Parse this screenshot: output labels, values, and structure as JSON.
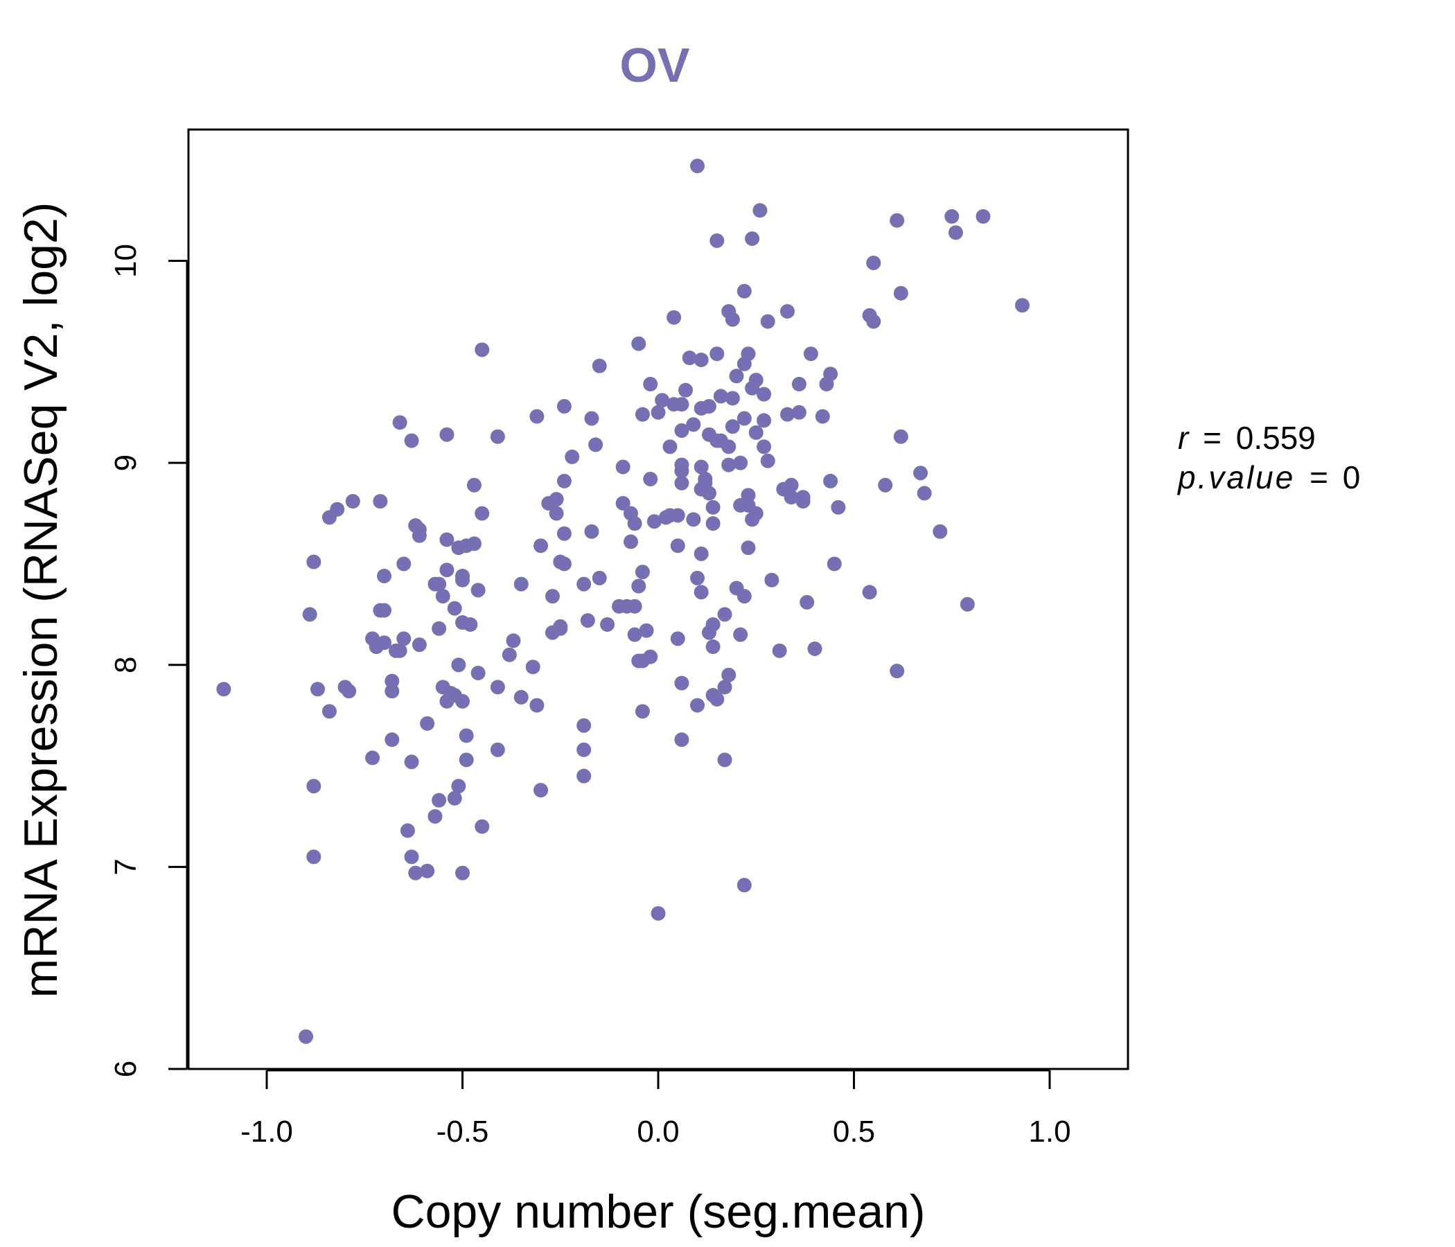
{
  "chart_data": {
    "type": "scatter",
    "title": "OV",
    "xlabel": "Copy number (seg.mean)",
    "ylabel": "mRNA Expression (RNASeq V2, log2)",
    "xlim": [
      -1.2,
      1.2
    ],
    "ylim": [
      6.0,
      10.65
    ],
    "x_ticks": [
      -1.0,
      -0.5,
      0.0,
      0.5,
      1.0
    ],
    "x_tick_labels": [
      "-1.0",
      "-0.5",
      "0.0",
      "0.5",
      "1.0"
    ],
    "y_ticks": [
      6,
      7,
      8,
      9,
      10
    ],
    "y_tick_labels": [
      "6",
      "7",
      "8",
      "9",
      "10"
    ],
    "grid": false,
    "stats": {
      "r_label": "r",
      "r_value": "0.559",
      "p_label": "p.value",
      "p_value": "0"
    },
    "colors": {
      "point": "#7570b3",
      "title": "#7570b3",
      "axis": "#000000"
    },
    "series": [
      {
        "points": [
          [
            -1.11,
            7.88
          ],
          [
            -0.9,
            6.16
          ],
          [
            -0.89,
            8.25
          ],
          [
            -0.88,
            8.51
          ],
          [
            -0.88,
            7.4
          ],
          [
            -0.88,
            7.05
          ],
          [
            -0.87,
            7.88
          ],
          [
            -0.84,
            8.73
          ],
          [
            -0.84,
            7.77
          ],
          [
            -0.82,
            8.77
          ],
          [
            -0.8,
            7.89
          ],
          [
            -0.79,
            7.87
          ],
          [
            -0.78,
            8.81
          ],
          [
            -0.73,
            8.13
          ],
          [
            -0.73,
            7.54
          ],
          [
            -0.72,
            8.09
          ],
          [
            -0.71,
            8.81
          ],
          [
            -0.71,
            8.27
          ],
          [
            -0.7,
            8.44
          ],
          [
            -0.7,
            8.27
          ],
          [
            -0.7,
            8.11
          ],
          [
            -0.68,
            7.92
          ],
          [
            -0.68,
            7.87
          ],
          [
            -0.68,
            7.63
          ],
          [
            -0.67,
            8.07
          ],
          [
            -0.66,
            8.07
          ],
          [
            -0.66,
            9.2
          ],
          [
            -0.65,
            8.13
          ],
          [
            -0.65,
            8.5
          ],
          [
            -0.64,
            7.18
          ],
          [
            -0.63,
            9.11
          ],
          [
            -0.63,
            7.52
          ],
          [
            -0.63,
            7.05
          ],
          [
            -0.62,
            8.69
          ],
          [
            -0.62,
            6.97
          ],
          [
            -0.61,
            8.67
          ],
          [
            -0.61,
            8.64
          ],
          [
            -0.61,
            8.1
          ],
          [
            -0.59,
            7.71
          ],
          [
            -0.59,
            6.98
          ],
          [
            -0.57,
            7.25
          ],
          [
            -0.57,
            8.4
          ],
          [
            -0.56,
            8.18
          ],
          [
            -0.56,
            7.33
          ],
          [
            -0.56,
            8.4
          ],
          [
            -0.55,
            8.34
          ],
          [
            -0.55,
            7.89
          ],
          [
            -0.54,
            8.62
          ],
          [
            -0.54,
            9.14
          ],
          [
            -0.54,
            8.47
          ],
          [
            -0.54,
            7.82
          ],
          [
            -0.53,
            7.86
          ],
          [
            -0.52,
            8.28
          ],
          [
            -0.52,
            7.34
          ],
          [
            -0.52,
            7.85
          ],
          [
            -0.51,
            8.58
          ],
          [
            -0.51,
            8.0
          ],
          [
            -0.51,
            7.4
          ],
          [
            -0.5,
            8.44
          ],
          [
            -0.5,
            8.42
          ],
          [
            -0.5,
            6.97
          ],
          [
            -0.5,
            8.21
          ],
          [
            -0.5,
            7.82
          ],
          [
            -0.49,
            7.65
          ],
          [
            -0.49,
            7.53
          ],
          [
            -0.49,
            8.59
          ],
          [
            -0.48,
            8.2
          ],
          [
            -0.47,
            8.89
          ],
          [
            -0.47,
            8.6
          ],
          [
            -0.46,
            8.37
          ],
          [
            -0.46,
            7.96
          ],
          [
            -0.45,
            8.75
          ],
          [
            -0.45,
            9.56
          ],
          [
            -0.45,
            7.2
          ],
          [
            -0.41,
            9.13
          ],
          [
            -0.41,
            7.89
          ],
          [
            -0.41,
            7.58
          ],
          [
            -0.38,
            8.05
          ],
          [
            -0.37,
            8.12
          ],
          [
            -0.35,
            8.4
          ],
          [
            -0.35,
            7.84
          ],
          [
            -0.32,
            7.99
          ],
          [
            -0.31,
            9.23
          ],
          [
            -0.31,
            7.8
          ],
          [
            -0.3,
            7.38
          ],
          [
            -0.3,
            8.59
          ],
          [
            -0.28,
            8.8
          ],
          [
            -0.27,
            8.34
          ],
          [
            -0.27,
            8.16
          ],
          [
            -0.26,
            8.82
          ],
          [
            -0.26,
            8.75
          ],
          [
            -0.25,
            8.51
          ],
          [
            -0.25,
            8.18
          ],
          [
            -0.25,
            8.19
          ],
          [
            -0.24,
            8.91
          ],
          [
            -0.24,
            9.28
          ],
          [
            -0.24,
            8.65
          ],
          [
            -0.24,
            8.5
          ],
          [
            -0.22,
            9.03
          ],
          [
            -0.19,
            7.58
          ],
          [
            -0.19,
            7.45
          ],
          [
            -0.19,
            7.7
          ],
          [
            -0.19,
            8.4
          ],
          [
            -0.18,
            8.22
          ],
          [
            -0.17,
            9.22
          ],
          [
            -0.17,
            8.66
          ],
          [
            -0.16,
            9.09
          ],
          [
            -0.15,
            8.43
          ],
          [
            -0.15,
            9.48
          ],
          [
            -0.13,
            8.2
          ],
          [
            -0.1,
            8.29
          ],
          [
            -0.09,
            8.8
          ],
          [
            -0.09,
            8.98
          ],
          [
            -0.08,
            8.29
          ],
          [
            -0.07,
            8.75
          ],
          [
            -0.07,
            8.61
          ],
          [
            -0.06,
            8.7
          ],
          [
            -0.06,
            8.29
          ],
          [
            -0.06,
            8.15
          ],
          [
            -0.05,
            9.59
          ],
          [
            -0.05,
            8.39
          ],
          [
            -0.05,
            8.02
          ],
          [
            -0.04,
            8.02
          ],
          [
            -0.04,
            7.77
          ],
          [
            -0.04,
            9.24
          ],
          [
            -0.04,
            8.46
          ],
          [
            -0.03,
            8.17
          ],
          [
            -0.02,
            9.39
          ],
          [
            -0.02,
            8.04
          ],
          [
            -0.02,
            8.92
          ],
          [
            -0.01,
            8.71
          ],
          [
            0.0,
            9.25
          ],
          [
            0.0,
            6.77
          ],
          [
            0.01,
            9.31
          ],
          [
            0.02,
            8.73
          ],
          [
            0.03,
            9.08
          ],
          [
            0.03,
            8.74
          ],
          [
            0.04,
            9.72
          ],
          [
            0.04,
            9.29
          ],
          [
            0.05,
            8.74
          ],
          [
            0.05,
            8.59
          ],
          [
            0.05,
            8.13
          ],
          [
            0.06,
            7.63
          ],
          [
            0.06,
            9.29
          ],
          [
            0.06,
            9.16
          ],
          [
            0.06,
            8.99
          ],
          [
            0.06,
            8.96
          ],
          [
            0.06,
            8.9
          ],
          [
            0.06,
            7.91
          ],
          [
            0.07,
            9.36
          ],
          [
            0.08,
            9.52
          ],
          [
            0.09,
            9.19
          ],
          [
            0.09,
            8.72
          ],
          [
            0.1,
            10.47
          ],
          [
            0.1,
            8.43
          ],
          [
            0.1,
            7.8
          ],
          [
            0.11,
            9.51
          ],
          [
            0.11,
            9.27
          ],
          [
            0.11,
            8.98
          ],
          [
            0.11,
            8.87
          ],
          [
            0.11,
            8.55
          ],
          [
            0.11,
            8.36
          ],
          [
            0.12,
            8.92
          ],
          [
            0.12,
            8.9
          ],
          [
            0.13,
            9.14
          ],
          [
            0.13,
            9.28
          ],
          [
            0.13,
            8.85
          ],
          [
            0.13,
            8.16
          ],
          [
            0.14,
            8.2
          ],
          [
            0.14,
            8.09
          ],
          [
            0.14,
            8.78
          ],
          [
            0.14,
            8.7
          ],
          [
            0.14,
            7.85
          ],
          [
            0.15,
            10.1
          ],
          [
            0.15,
            9.54
          ],
          [
            0.15,
            9.11
          ],
          [
            0.15,
            7.83
          ],
          [
            0.16,
            9.33
          ],
          [
            0.16,
            9.11
          ],
          [
            0.17,
            7.53
          ],
          [
            0.17,
            7.89
          ],
          [
            0.17,
            8.25
          ],
          [
            0.18,
            9.75
          ],
          [
            0.18,
            9.08
          ],
          [
            0.18,
            8.99
          ],
          [
            0.18,
            7.95
          ],
          [
            0.19,
            9.71
          ],
          [
            0.19,
            9.32
          ],
          [
            0.19,
            9.18
          ],
          [
            0.2,
            9.43
          ],
          [
            0.2,
            8.38
          ],
          [
            0.21,
            9.0
          ],
          [
            0.21,
            8.79
          ],
          [
            0.21,
            8.15
          ],
          [
            0.22,
            9.85
          ],
          [
            0.22,
            9.22
          ],
          [
            0.22,
            9.49
          ],
          [
            0.22,
            8.34
          ],
          [
            0.22,
            6.91
          ],
          [
            0.23,
            9.54
          ],
          [
            0.23,
            8.84
          ],
          [
            0.23,
            8.58
          ],
          [
            0.23,
            8.79
          ],
          [
            0.24,
            10.11
          ],
          [
            0.24,
            9.37
          ],
          [
            0.24,
            8.72
          ],
          [
            0.25,
            9.41
          ],
          [
            0.25,
            9.15
          ],
          [
            0.25,
            8.75
          ],
          [
            0.26,
            10.25
          ],
          [
            0.27,
            9.34
          ],
          [
            0.27,
            9.21
          ],
          [
            0.27,
            9.08
          ],
          [
            0.28,
            9.7
          ],
          [
            0.28,
            9.01
          ],
          [
            0.29,
            8.42
          ],
          [
            0.31,
            8.07
          ],
          [
            0.32,
            8.87
          ],
          [
            0.33,
            9.75
          ],
          [
            0.33,
            9.24
          ],
          [
            0.34,
            8.89
          ],
          [
            0.34,
            8.83
          ],
          [
            0.36,
            9.39
          ],
          [
            0.36,
            9.25
          ],
          [
            0.37,
            8.81
          ],
          [
            0.37,
            8.83
          ],
          [
            0.38,
            8.31
          ],
          [
            0.39,
            9.54
          ],
          [
            0.4,
            8.08
          ],
          [
            0.42,
            9.23
          ],
          [
            0.43,
            9.39
          ],
          [
            0.44,
            9.44
          ],
          [
            0.44,
            8.91
          ],
          [
            0.45,
            8.5
          ],
          [
            0.46,
            8.78
          ],
          [
            0.54,
            9.73
          ],
          [
            0.54,
            8.36
          ],
          [
            0.55,
            9.99
          ],
          [
            0.55,
            9.7
          ],
          [
            0.58,
            8.89
          ],
          [
            0.61,
            10.2
          ],
          [
            0.61,
            7.97
          ],
          [
            0.62,
            9.84
          ],
          [
            0.62,
            9.13
          ],
          [
            0.67,
            8.95
          ],
          [
            0.68,
            8.85
          ],
          [
            0.72,
            8.66
          ],
          [
            0.75,
            10.22
          ],
          [
            0.76,
            10.14
          ],
          [
            0.79,
            8.3
          ],
          [
            0.83,
            10.22
          ],
          [
            0.93,
            9.78
          ]
        ]
      }
    ]
  }
}
